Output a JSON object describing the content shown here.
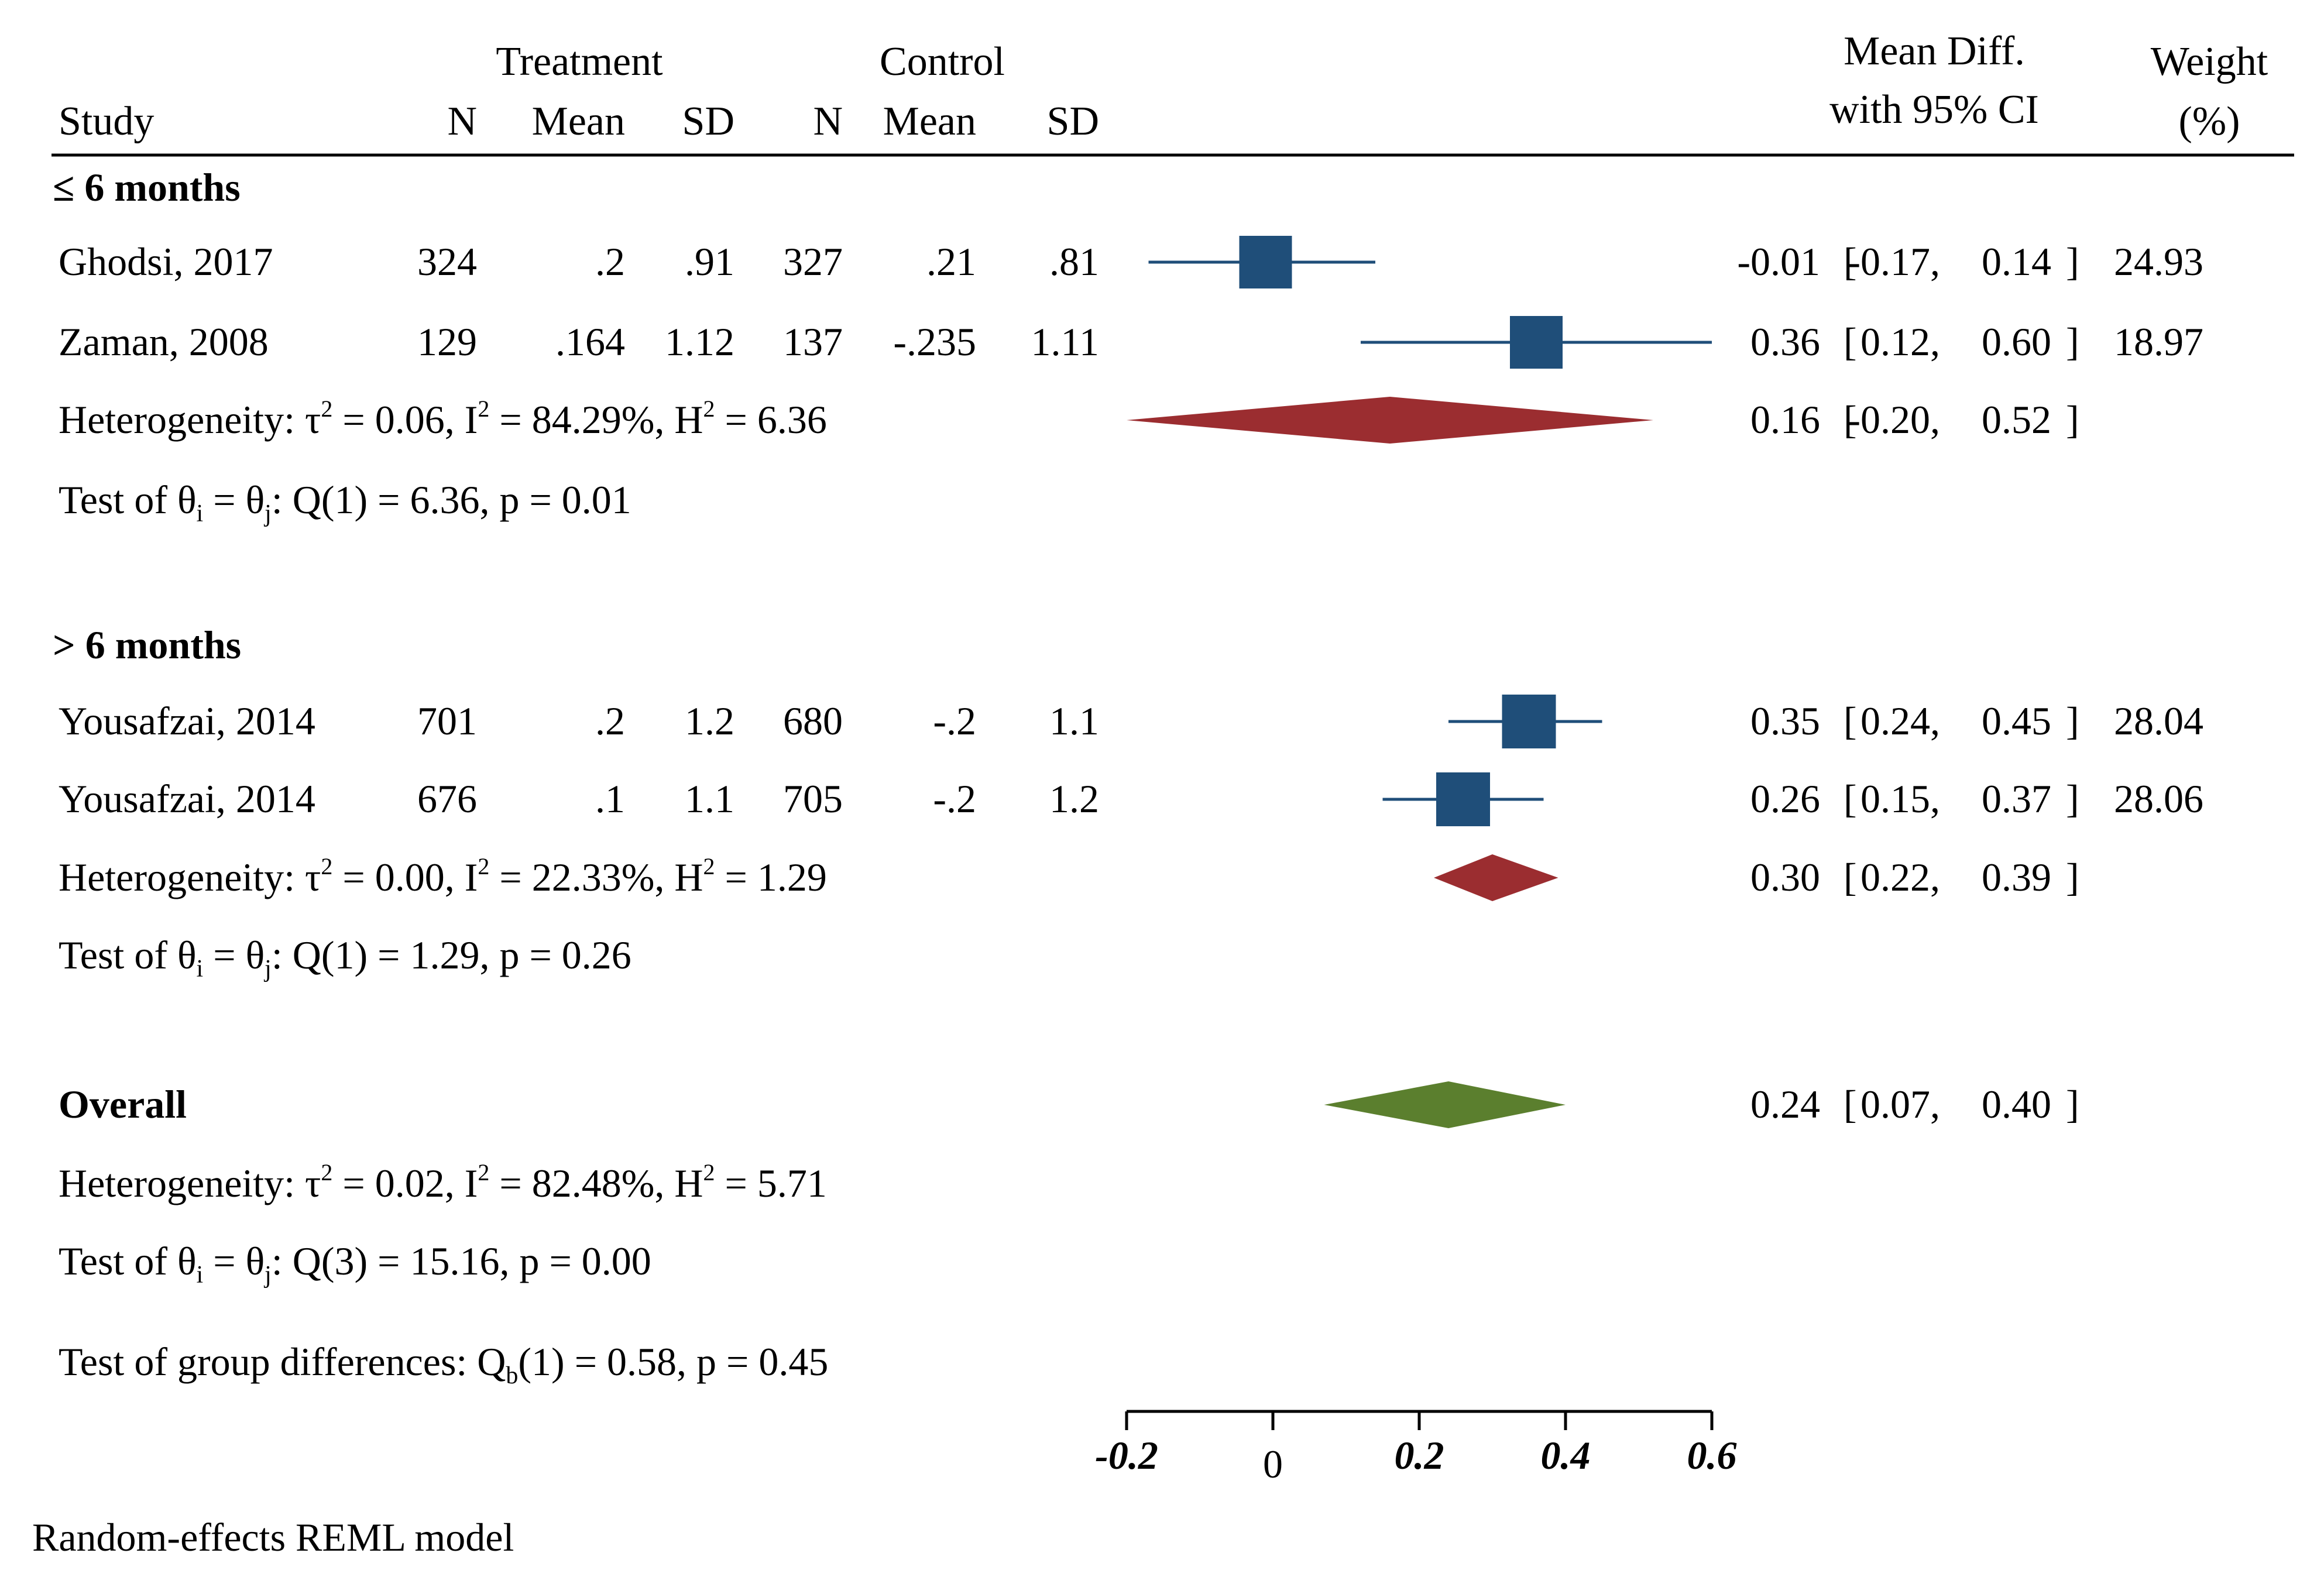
{
  "header": {
    "study": "Study",
    "treatment": "Treatment",
    "control": "Control",
    "n": "N",
    "mean": "Mean",
    "sd": "SD",
    "md_line1": "Mean Diff.",
    "md_line2": "with 95% CI",
    "weight_line1": "Weight",
    "weight_line2": "(%)"
  },
  "colors": {
    "study_marker": "#1f4e79",
    "subgroup_diamond": "#9b2d30",
    "overall_diamond": "#5b7f2e"
  },
  "groups": [
    {
      "label_prefix": "≤",
      "label": "6 months",
      "studies": [
        {
          "name": "Ghodsi, 2017",
          "t_n": "324",
          "t_mean": ".2",
          "t_sd": ".91",
          "c_n": "327",
          "c_mean": ".21",
          "c_sd": ".81",
          "md": "-0.01",
          "lo": "-0.17",
          "hi": "0.14",
          "weight": "24.93"
        },
        {
          "name": "Zaman, 2008",
          "t_n": "129",
          "t_mean": ".164",
          "t_sd": "1.12",
          "c_n": "137",
          "c_mean": "-.235",
          "c_sd": "1.11",
          "md": "0.36",
          "lo": "0.12",
          "hi": "0.60",
          "weight": "18.97"
        }
      ],
      "heterogeneity": {
        "tau2": "0.06",
        "i2": "84.29%",
        "h2": "6.36"
      },
      "pooled": {
        "md": "0.16",
        "lo": "-0.20",
        "hi": "0.52"
      },
      "test": {
        "q": "1",
        "qval": "6.36",
        "p": "0.01"
      }
    },
    {
      "label_prefix": ">",
      "label": "6 months",
      "studies": [
        {
          "name": "Yousafzai, 2014",
          "t_n": "701",
          "t_mean": ".2",
          "t_sd": "1.2",
          "c_n": "680",
          "c_mean": "-.2",
          "c_sd": "1.1",
          "md": "0.35",
          "lo": "0.24",
          "hi": "0.45",
          "weight": "28.04"
        },
        {
          "name": "Yousafzai, 2014",
          "t_n": "676",
          "t_mean": ".1",
          "t_sd": "1.1",
          "c_n": "705",
          "c_mean": "-.2",
          "c_sd": "1.2",
          "md": "0.26",
          "lo": "0.15",
          "hi": "0.37",
          "weight": "28.06"
        }
      ],
      "heterogeneity": {
        "tau2": "0.00",
        "i2": "22.33%",
        "h2": "1.29"
      },
      "pooled": {
        "md": "0.30",
        "lo": "0.22",
        "hi": "0.39"
      },
      "test": {
        "q": "1",
        "qval": "1.29",
        "p": "0.26"
      }
    }
  ],
  "overall": {
    "label": "Overall",
    "pooled": {
      "md": "0.24",
      "lo": "0.07",
      "hi": "0.40"
    },
    "heterogeneity": {
      "tau2": "0.02",
      "i2": "82.48%",
      "h2": "5.71"
    },
    "test": {
      "q": "3",
      "qval": "15.16",
      "p": "0.00"
    }
  },
  "group_diff": {
    "df": "1",
    "qval": "0.58",
    "p": "0.45"
  },
  "footnote": "Random-effects REML model",
  "axis": {
    "min": -0.2,
    "max": 0.6,
    "ticks": [
      -0.2,
      0,
      0.2,
      0.4,
      0.6
    ],
    "tick_labels": [
      "-0.2",
      "0",
      "0.2",
      "0.4",
      "0.6"
    ]
  },
  "chart_data": {
    "type": "forest",
    "title": "",
    "xlabel": "",
    "xlim": [
      -0.2,
      0.6
    ],
    "studies": [
      {
        "name": "Ghodsi, 2017",
        "group": "≤ 6 months",
        "md": -0.01,
        "lo": -0.17,
        "hi": 0.14,
        "weight": 24.93
      },
      {
        "name": "Zaman, 2008",
        "group": "≤ 6 months",
        "md": 0.36,
        "lo": 0.12,
        "hi": 0.6,
        "weight": 18.97
      },
      {
        "name": "Yousafzai, 2014",
        "group": "> 6 months",
        "md": 0.35,
        "lo": 0.24,
        "hi": 0.45,
        "weight": 28.04
      },
      {
        "name": "Yousafzai, 2014",
        "group": "> 6 months",
        "md": 0.26,
        "lo": 0.15,
        "hi": 0.37,
        "weight": 28.06
      }
    ],
    "subgroups": [
      {
        "name": "≤ 6 months",
        "md": 0.16,
        "lo": -0.2,
        "hi": 0.52
      },
      {
        "name": "> 6 months",
        "md": 0.3,
        "lo": 0.22,
        "hi": 0.39
      }
    ],
    "overall": {
      "md": 0.24,
      "lo": 0.07,
      "hi": 0.4
    }
  }
}
